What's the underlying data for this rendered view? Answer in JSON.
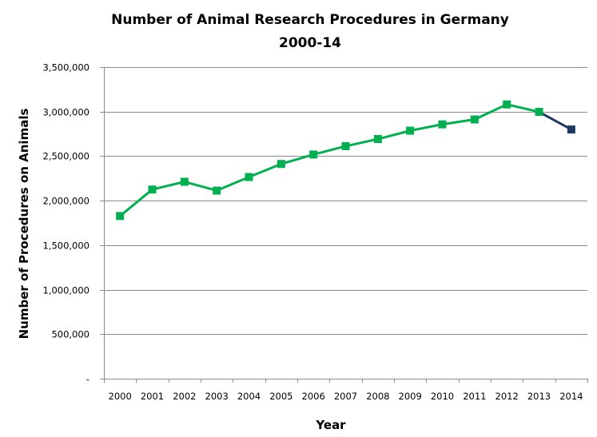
{
  "chart_data": {
    "type": "line",
    "title": [
      "Number of Animal Research Procedures in Germany",
      "2000-14"
    ],
    "xlabel": "Year",
    "ylabel": "Number of Procedures  on Animals",
    "categories": [
      "2000",
      "2001",
      "2002",
      "2003",
      "2004",
      "2005",
      "2006",
      "2007",
      "2008",
      "2009",
      "2010",
      "2011",
      "2012",
      "2013",
      "2014"
    ],
    "series": [
      {
        "values": [
          1827000,
          2125000,
          2212000,
          2113000,
          2265000,
          2412000,
          2518000,
          2612000,
          2692000,
          2786000,
          2857000,
          2912000,
          3081000,
          2997000,
          2799000
        ]
      }
    ],
    "highlight": {
      "from_index": 13,
      "color": "#1f3864"
    },
    "line_color": "#00b050",
    "ylim": [
      0,
      3500000
    ],
    "yticks": [
      0,
      500000,
      1000000,
      1500000,
      2000000,
      2500000,
      3000000,
      3500000
    ],
    "ytick_labels": [
      "-",
      "500,000",
      "1,000,000",
      "1,500,000",
      "2,000,000",
      "2,500,000",
      "3,000,000",
      "3,500,000"
    ],
    "grid": true,
    "legend": "none"
  }
}
